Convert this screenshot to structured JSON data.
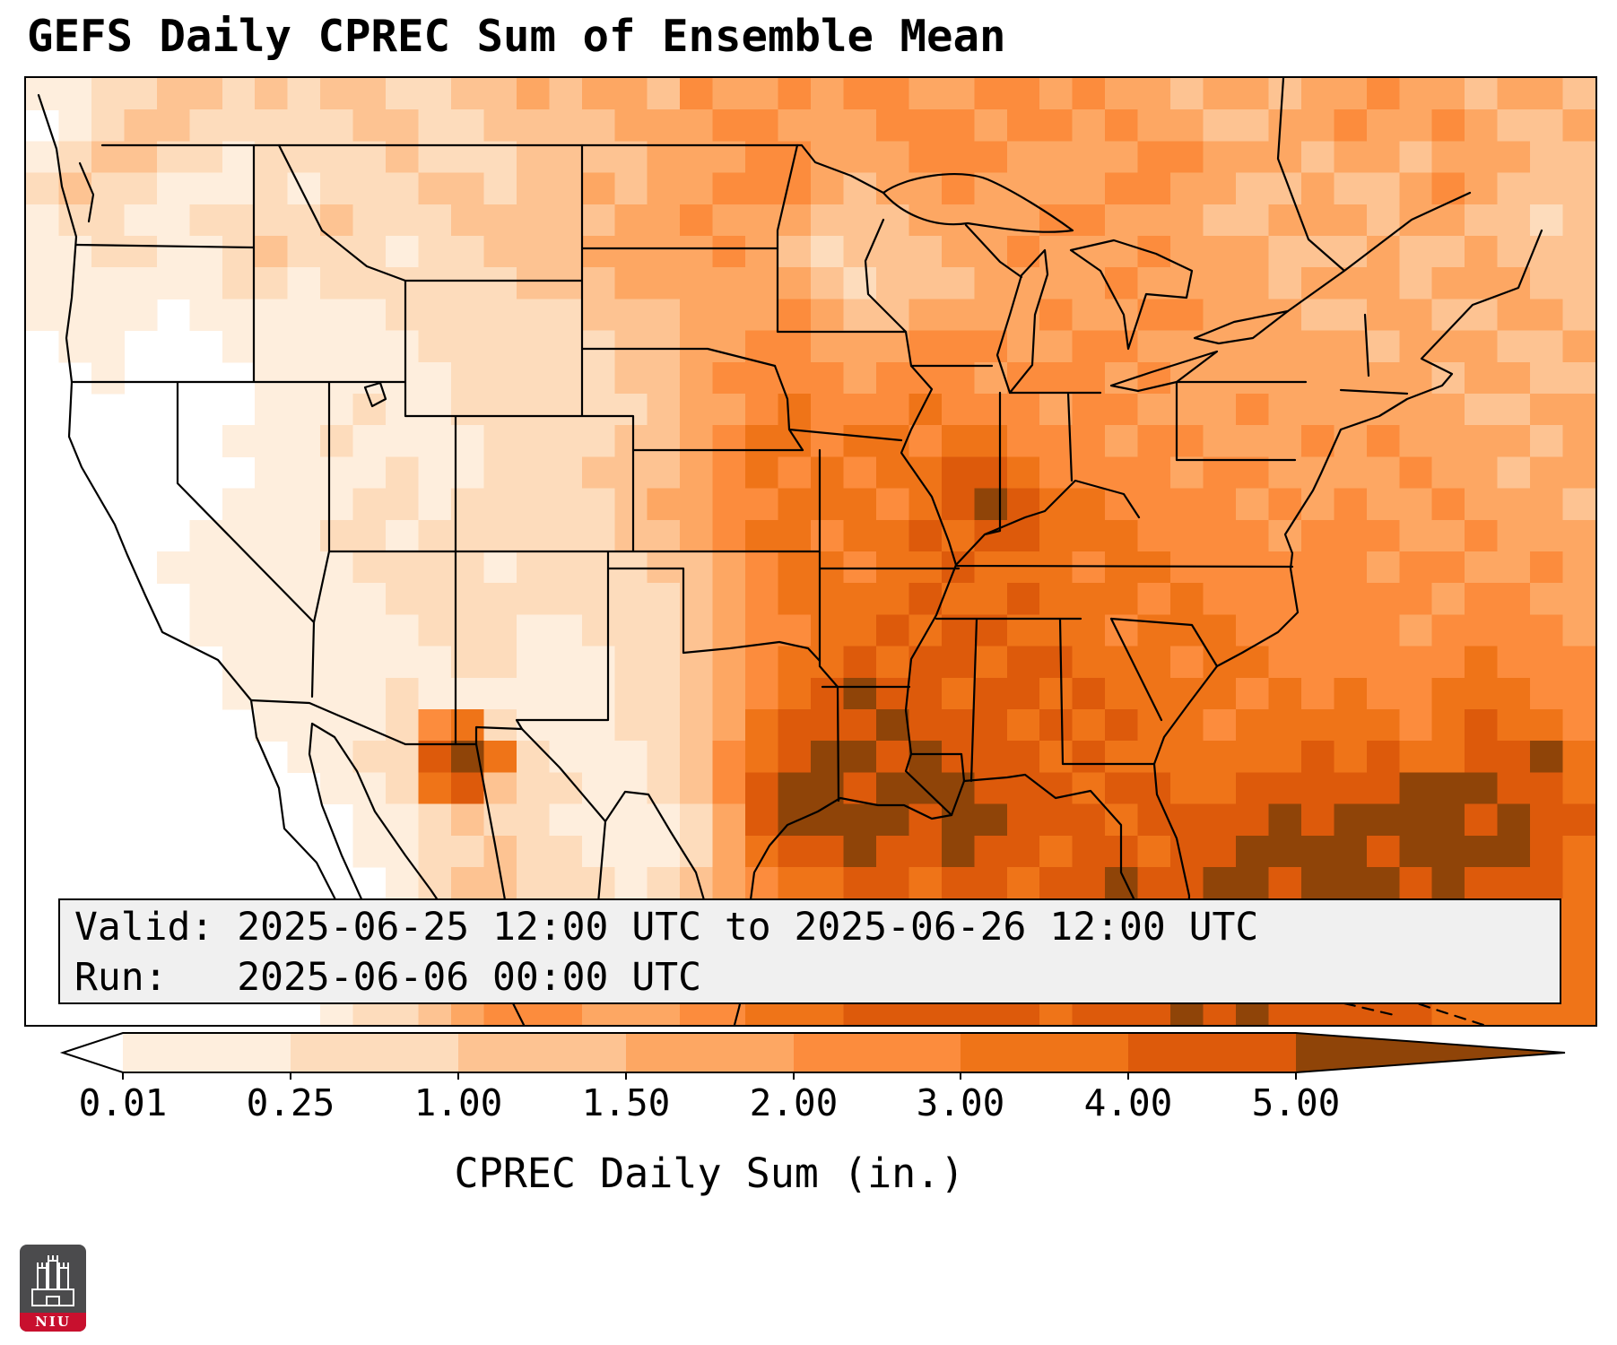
{
  "title": "GEFS Daily CPREC Sum of Ensemble Mean",
  "info_box": {
    "valid_line": "Valid: 2025-06-25 12:00 UTC to 2025-06-26 12:00 UTC",
    "run_line": "Run:   2025-06-06 00:00 UTC"
  },
  "colorbar": {
    "label": "CPREC Daily Sum (in.)",
    "ticks": [
      "0.01",
      "0.25",
      "1.00",
      "1.50",
      "2.00",
      "3.00",
      "4.00",
      "5.00"
    ],
    "palette": [
      "#ffffff",
      "#feeedd",
      "#fddcbc",
      "#fdc392",
      "#fda763",
      "#fc8c3d",
      "#ef7418",
      "#dd5a0b",
      "#8f4408"
    ]
  },
  "logo": {
    "text": "NIU"
  },
  "chart_data": {
    "type": "heatmap",
    "title": "GEFS Daily CPREC Sum of Ensemble Mean",
    "colorbar_label": "CPREC Daily Sum (in.)",
    "units": "inches",
    "levels": [
      0.01,
      0.25,
      1.0,
      1.5,
      2.0,
      3.0,
      4.0,
      5.0
    ],
    "bins": [
      "<0.01",
      "0.01-0.25",
      "0.25-1.00",
      "1.00-1.50",
      "1.50-2.00",
      "2.00-3.00",
      "3.00-4.00",
      "4.00-5.00",
      ">5.00"
    ],
    "valid": "2025-06-25 12:00 UTC to 2025-06-26 12:00 UTC",
    "run": "2025-06-06 00:00 UTC",
    "legend_position": "bottom",
    "extent_estimate": {
      "lon": [
        -126,
        -64
      ],
      "lat": [
        23,
        51
      ]
    },
    "grid": {
      "cols": 48,
      "rows": 30,
      "note": "each digit 0-8 indexes colorbar.palette; bin i covers bins[i]",
      "rows_data": [
        "112233232332233434435445455445545443443445443443",
        "012332222233223333444554445554554544334454454334",
        "123322122223222333344455444555444455444344344433",
        "232211121222332334344555434454444554433433454333",
        "122112222322233333445444333444455444334443443323",
        "112211232221223334444543233344544454443334334333",
        "111111221222222333444444323334444544443444344433",
        "111101111112222223334445433444454455444334433443",
        "011000111111222222334455444555445544444443444334",
        "001000011111122222334555545554555454444444434433",
        "000000011121122222234456555655545544454444443344",
        "000000111211112222334566566566555455444545444434",
        "000000011112112223334565656677655554554444544344",
        "000000111122122222344556665678766555545454454443",
        "000001111221222222334566566767766655554555445444",
        "000011111122221222233456656676665665555554554454",
        "000001111112222222223456666766766656555555545544",
        "000001111111222112223455667677666566655555455554",
        "000000111111122111223456676776776665665555556555",
        "000000111112111111223456787767767666656565566655",
        "000000011112562111223467778777676766566666567665",
        "000000001122786211123567887877767666666767667786",
        "000000000112673221123578878887776776677777888776",
        "000000000011232211112478888788777677778788887877",
        "000000000011223221112467787787767767788887888876",
        "000000000001233222123456677677677877887888787776",
        "000000000001243222223456667776677787878787877766",
        "000000000012344332223456677677777878787878777666",
        "000000000112345443334556667777677787878787776666",
        "000000000122345554445566677777767778787777766666"
      ]
    }
  }
}
